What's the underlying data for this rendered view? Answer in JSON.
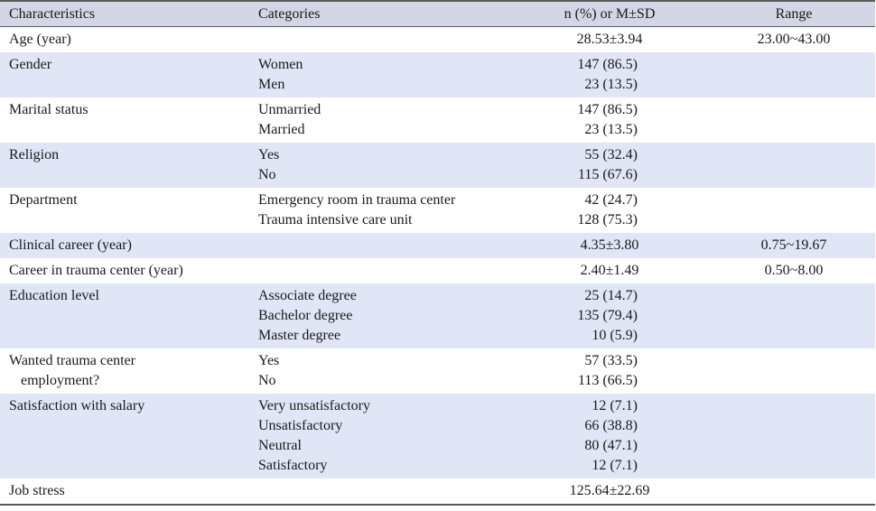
{
  "headers": [
    "Characteristics",
    "Categories",
    "n (%) or M±SD",
    "Range"
  ],
  "rows": [
    {
      "char": [
        "Age (year)"
      ],
      "cats": [
        ""
      ],
      "vals": [
        "28.53±3.94"
      ],
      "range": "23.00~43.00",
      "align": "center"
    },
    {
      "char": [
        "Gender"
      ],
      "cats": [
        "Women",
        "Men"
      ],
      "vals": [
        "147 (86.5)",
        "23 (13.5)"
      ],
      "range": "",
      "align": "right"
    },
    {
      "char": [
        "Marital status"
      ],
      "cats": [
        "Unmarried",
        "Married"
      ],
      "vals": [
        "147 (86.5)",
        "23 (13.5)"
      ],
      "range": "",
      "align": "right"
    },
    {
      "char": [
        "Religion"
      ],
      "cats": [
        "Yes",
        "No"
      ],
      "vals": [
        "55 (32.4)",
        "115 (67.6)"
      ],
      "range": "",
      "align": "right"
    },
    {
      "char": [
        "Department"
      ],
      "cats": [
        "Emergency room in trauma center",
        "Trauma intensive care unit"
      ],
      "vals": [
        "42 (24.7)",
        "128 (75.3)"
      ],
      "range": "",
      "align": "right"
    },
    {
      "char": [
        "Clinical career (year)"
      ],
      "cats": [
        ""
      ],
      "vals": [
        "4.35±3.80"
      ],
      "range": "0.75~19.67",
      "align": "center"
    },
    {
      "char": [
        "Career in trauma center (year)"
      ],
      "cats": [
        ""
      ],
      "vals": [
        "2.40±1.49"
      ],
      "range": "0.50~8.00",
      "align": "center"
    },
    {
      "char": [
        "Education level"
      ],
      "cats": [
        "Associate degree",
        "Bachelor degree",
        "Master degree"
      ],
      "vals": [
        "25 (14.7)",
        "135 (79.4)",
        "10 (5.9)"
      ],
      "range": "",
      "align": "right"
    },
    {
      "char": [
        "Wanted trauma center",
        "employment?"
      ],
      "cats": [
        "Yes",
        "No"
      ],
      "vals": [
        "57 (33.5)",
        "113 (66.5)"
      ],
      "range": "",
      "align": "right"
    },
    {
      "char": [
        "Satisfaction with salary"
      ],
      "cats": [
        "Very unsatisfactory",
        "Unsatisfactory",
        "Neutral",
        "Satisfactory"
      ],
      "vals": [
        "12 (7.1)",
        "66 (38.8)",
        "80 (47.1)",
        "12 (7.1)"
      ],
      "range": "",
      "align": "right"
    },
    {
      "char": [
        "Job stress"
      ],
      "cats": [
        ""
      ],
      "vals": [
        "125.64±22.69"
      ],
      "range": "",
      "align": "center"
    }
  ]
}
